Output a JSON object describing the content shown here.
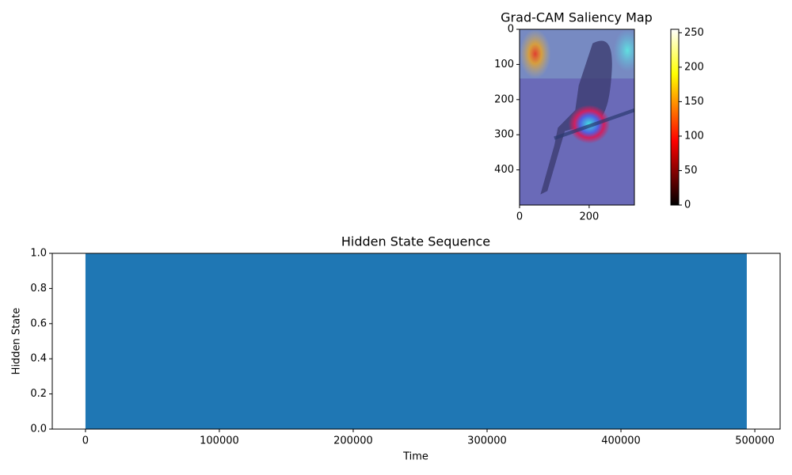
{
  "chart_data": [
    {
      "type": "image",
      "title": "Grad-CAM Saliency Map",
      "xlim": [
        0,
        330
      ],
      "ylim": [
        500,
        0
      ],
      "xticks": [
        0,
        200
      ],
      "yticks": [
        0,
        100,
        200,
        300,
        400
      ],
      "colorbar": {
        "colormap": "hot",
        "clim": [
          0,
          255
        ],
        "ticks": [
          0,
          50,
          100,
          150,
          200,
          250
        ]
      }
    },
    {
      "type": "area",
      "title": "Hidden State Sequence",
      "xlabel": "Time",
      "ylabel": "Hidden State",
      "x": [
        0,
        494000
      ],
      "values": [
        1,
        1
      ],
      "color": "#1f77b4",
      "xlim": [
        -24800,
        518900
      ],
      "ylim": [
        0,
        1
      ],
      "xticks": [
        0,
        100000,
        200000,
        300000,
        400000,
        500000
      ],
      "yticks": [
        {
          "value": 0,
          "label": "0.0"
        },
        {
          "value": 0.2,
          "label": "0.2"
        },
        {
          "value": 0.4,
          "label": "0.4"
        },
        {
          "value": 0.6,
          "label": "0.6"
        },
        {
          "value": 0.8,
          "label": "0.8"
        },
        {
          "value": 1,
          "label": "1.0"
        }
      ]
    }
  ]
}
